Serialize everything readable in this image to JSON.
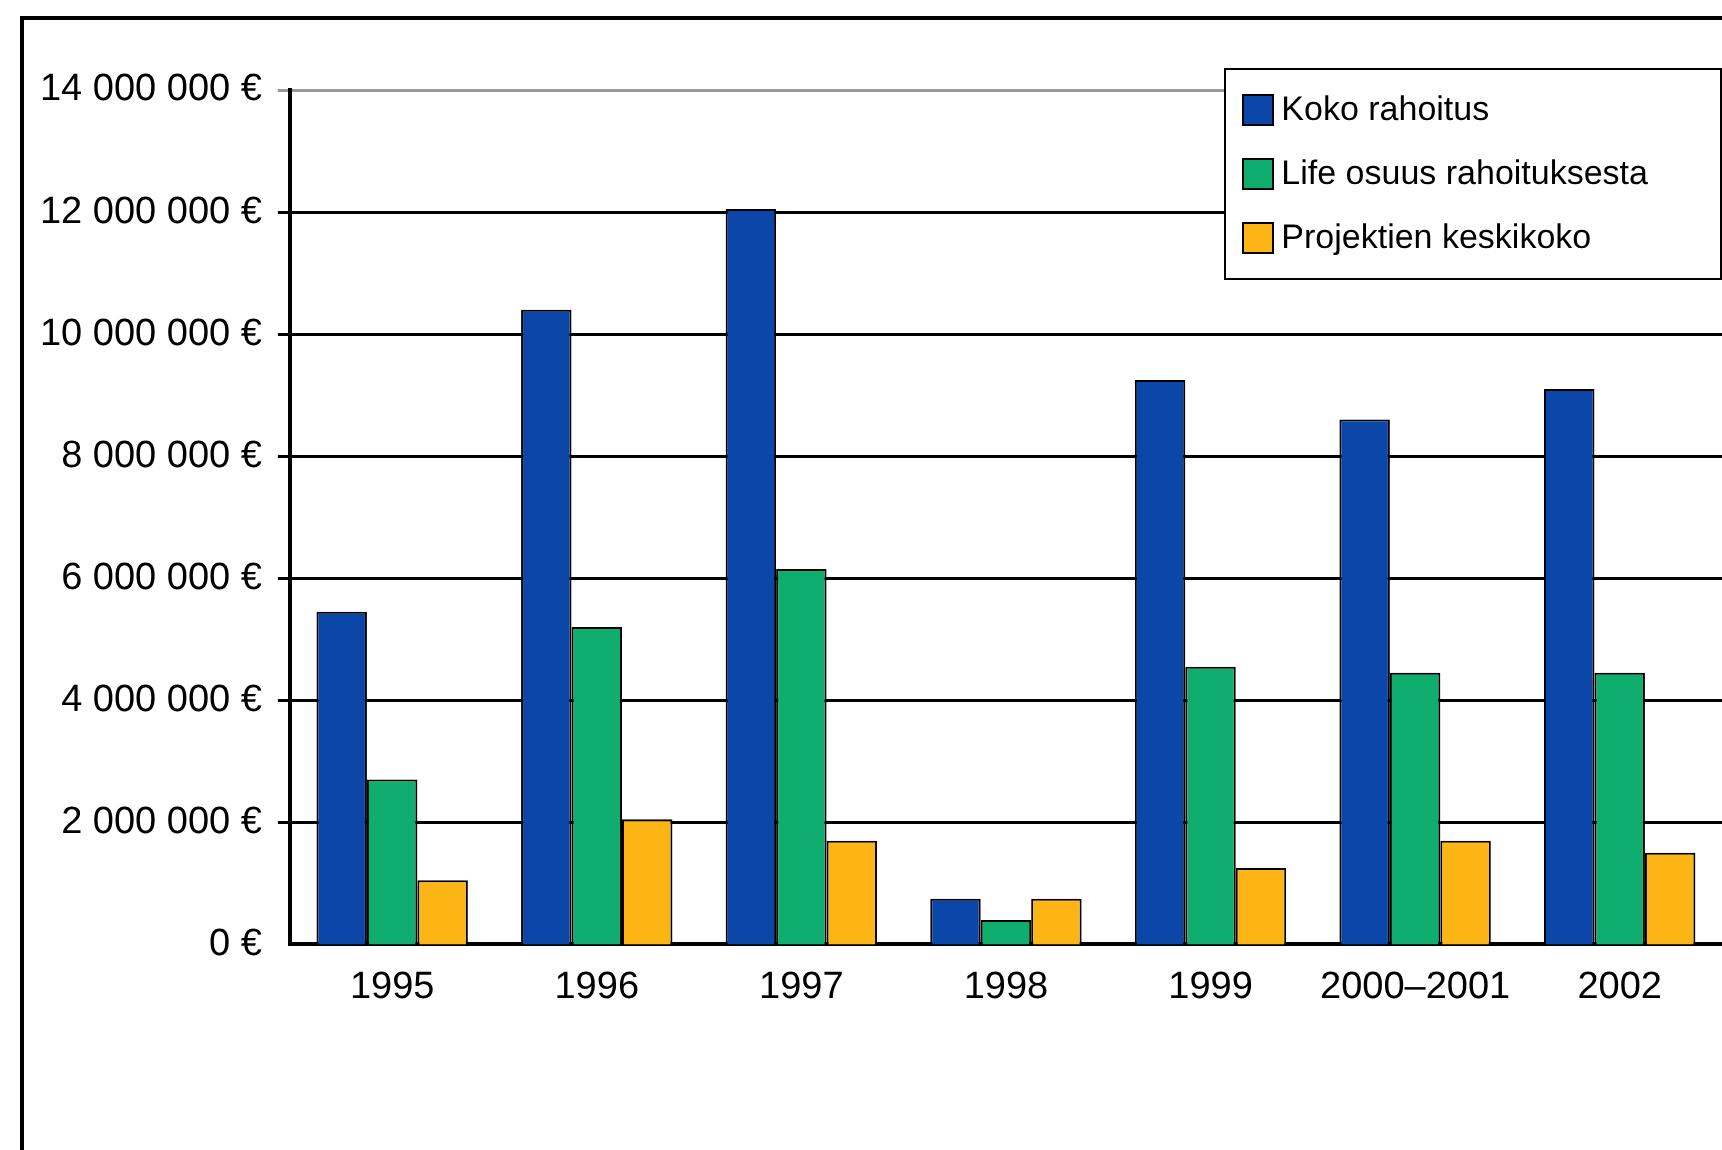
{
  "chart_data": {
    "type": "bar",
    "categories": [
      "1995",
      "1996",
      "1997",
      "1998",
      "1999",
      "2000–2001",
      "2002"
    ],
    "series": [
      {
        "name": "Koko rahoitus",
        "color": "#0a47a8",
        "values": [
          5450000,
          10400000,
          12050000,
          750000,
          9250000,
          8600000,
          9100000
        ]
      },
      {
        "name": "Life osuus rahoituksesta",
        "color": "#0fae6e",
        "values": [
          2700000,
          5200000,
          6150000,
          400000,
          4550000,
          4450000,
          4450000
        ]
      },
      {
        "name": "Projektien keskikoko",
        "color": "#fdb515",
        "values": [
          1050000,
          2050000,
          1700000,
          750000,
          1250000,
          1700000,
          1500000
        ]
      }
    ],
    "ylim": [
      0,
      14000000
    ],
    "yticks": [
      {
        "value": 0,
        "label": "0 €"
      },
      {
        "value": 2000000,
        "label": "2 000 000 €"
      },
      {
        "value": 4000000,
        "label": "4 000 000 €"
      },
      {
        "value": 6000000,
        "label": "6 000 000 €"
      },
      {
        "value": 8000000,
        "label": "8 000 000 €"
      },
      {
        "value": 10000000,
        "label": "10 000 000 €"
      },
      {
        "value": 12000000,
        "label": "12 000 000 €"
      },
      {
        "value": 14000000,
        "label": "14 000 000 €"
      }
    ],
    "grid": "y",
    "legend": "top right"
  }
}
